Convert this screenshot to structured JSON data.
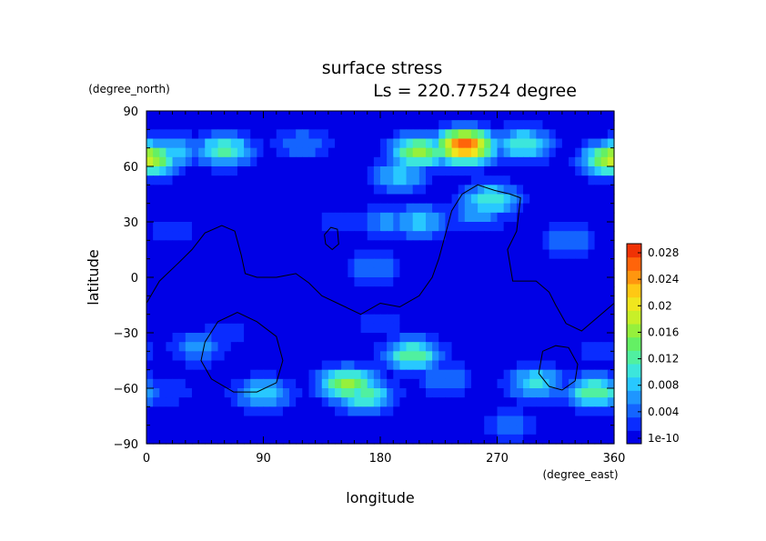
{
  "chart_data": {
    "type": "heatmap",
    "title": "surface stress",
    "subtitle": "Ls = 220.77524 degree",
    "xlabel": "longitude",
    "ylabel": "latitude",
    "x_units": "(degree_east)",
    "y_units": "(degree_north)",
    "xlim": [
      0,
      360
    ],
    "ylim": [
      -90,
      90
    ],
    "x_ticks": [
      "0",
      "90",
      "180",
      "270",
      "360"
    ],
    "y_ticks": [
      "90",
      "60",
      "30",
      "0",
      "−30",
      "−60",
      "−90"
    ],
    "colorbar": {
      "labels": [
        "0.028",
        "0.024",
        "0.02",
        "0.016",
        "0.012",
        "0.008",
        "0.004",
        "1e-10"
      ],
      "min": 0,
      "max": 0.03,
      "colors": [
        "#0000e6",
        "#0a2cff",
        "#1464ff",
        "#1e96ff",
        "#28c8ff",
        "#3ce6dc",
        "#50f0a0",
        "#64f064",
        "#96f03c",
        "#c8f028",
        "#f0e61e",
        "#ffc814",
        "#ff960f",
        "#ff640a",
        "#f03205"
      ]
    },
    "background_value": 0.001,
    "features": [
      {
        "lon": 0,
        "lat": 64,
        "value": 0.02
      },
      {
        "lon": 20,
        "lat": 68,
        "value": 0.01
      },
      {
        "lon": 360,
        "lat": 64,
        "value": 0.018
      },
      {
        "lon": 60,
        "lat": 69,
        "value": 0.013
      },
      {
        "lon": 120,
        "lat": 72,
        "value": 0.006
      },
      {
        "lon": 245,
        "lat": 71,
        "value": 0.028
      },
      {
        "lon": 210,
        "lat": 68,
        "value": 0.017
      },
      {
        "lon": 290,
        "lat": 72,
        "value": 0.012
      },
      {
        "lon": 195,
        "lat": 55,
        "value": 0.009
      },
      {
        "lon": 185,
        "lat": 30,
        "value": 0.007
      },
      {
        "lon": 175,
        "lat": 5,
        "value": 0.006
      },
      {
        "lon": 255,
        "lat": 35,
        "value": 0.008
      },
      {
        "lon": 265,
        "lat": 42,
        "value": 0.012
      },
      {
        "lon": 210,
        "lat": 30,
        "value": 0.009
      },
      {
        "lon": 325,
        "lat": 20,
        "value": 0.006
      },
      {
        "lon": 150,
        "lat": 30,
        "value": 0.004
      },
      {
        "lon": 20,
        "lat": 25,
        "value": 0.004
      },
      {
        "lon": 60,
        "lat": -30,
        "value": 0.003
      },
      {
        "lon": 40,
        "lat": -38,
        "value": 0.007
      },
      {
        "lon": 205,
        "lat": -42,
        "value": 0.014
      },
      {
        "lon": 230,
        "lat": -55,
        "value": 0.006
      },
      {
        "lon": 155,
        "lat": -58,
        "value": 0.017
      },
      {
        "lon": 168,
        "lat": -64,
        "value": 0.013
      },
      {
        "lon": 90,
        "lat": -63,
        "value": 0.01
      },
      {
        "lon": 300,
        "lat": -57,
        "value": 0.011
      },
      {
        "lon": 345,
        "lat": -62,
        "value": 0.014
      },
      {
        "lon": 15,
        "lat": -62,
        "value": 0.004
      },
      {
        "lon": 280,
        "lat": -80,
        "value": 0.005
      },
      {
        "lon": 180,
        "lat": -25,
        "value": 0.004
      },
      {
        "lon": 350,
        "lat": -40,
        "value": 0.004
      }
    ],
    "contours": [
      [
        [
          0,
          -14
        ],
        [
          10,
          -2
        ],
        [
          25,
          8
        ],
        [
          35,
          15
        ],
        [
          45,
          24
        ],
        [
          58,
          28
        ],
        [
          68,
          25
        ],
        [
          73,
          12
        ],
        [
          76,
          2
        ],
        [
          85,
          0
        ],
        [
          100,
          0
        ],
        [
          115,
          2
        ],
        [
          125,
          -3
        ],
        [
          135,
          -10
        ],
        [
          150,
          -15
        ],
        [
          165,
          -20
        ],
        [
          180,
          -14
        ],
        [
          195,
          -16
        ],
        [
          210,
          -10
        ],
        [
          220,
          0
        ],
        [
          225,
          10
        ],
        [
          232,
          28
        ],
        [
          235,
          36
        ],
        [
          243,
          45
        ],
        [
          255,
          50
        ],
        [
          268,
          47
        ],
        [
          280,
          45
        ],
        [
          288,
          43
        ],
        [
          285,
          25
        ],
        [
          278,
          15
        ],
        [
          282,
          -2
        ],
        [
          300,
          -2
        ],
        [
          310,
          -8
        ],
        [
          315,
          -15
        ],
        [
          323,
          -25
        ],
        [
          335,
          -29
        ],
        [
          350,
          -20
        ],
        [
          360,
          -14
        ]
      ],
      [
        [
          137,
          23
        ],
        [
          142,
          27
        ],
        [
          147,
          26
        ],
        [
          148,
          18
        ],
        [
          143,
          15
        ],
        [
          138,
          18
        ],
        [
          137,
          23
        ]
      ],
      [
        [
          45,
          -35
        ],
        [
          55,
          -24
        ],
        [
          70,
          -19
        ],
        [
          85,
          -24
        ],
        [
          100,
          -32
        ],
        [
          105,
          -45
        ],
        [
          100,
          -57
        ],
        [
          85,
          -62
        ],
        [
          67,
          -62
        ],
        [
          50,
          -55
        ],
        [
          42,
          -45
        ],
        [
          45,
          -35
        ]
      ],
      [
        [
          305,
          -40
        ],
        [
          315,
          -37
        ],
        [
          325,
          -38
        ],
        [
          332,
          -47
        ],
        [
          330,
          -56
        ],
        [
          320,
          -61
        ],
        [
          310,
          -59
        ],
        [
          302,
          -52
        ],
        [
          305,
          -40
        ]
      ]
    ]
  }
}
